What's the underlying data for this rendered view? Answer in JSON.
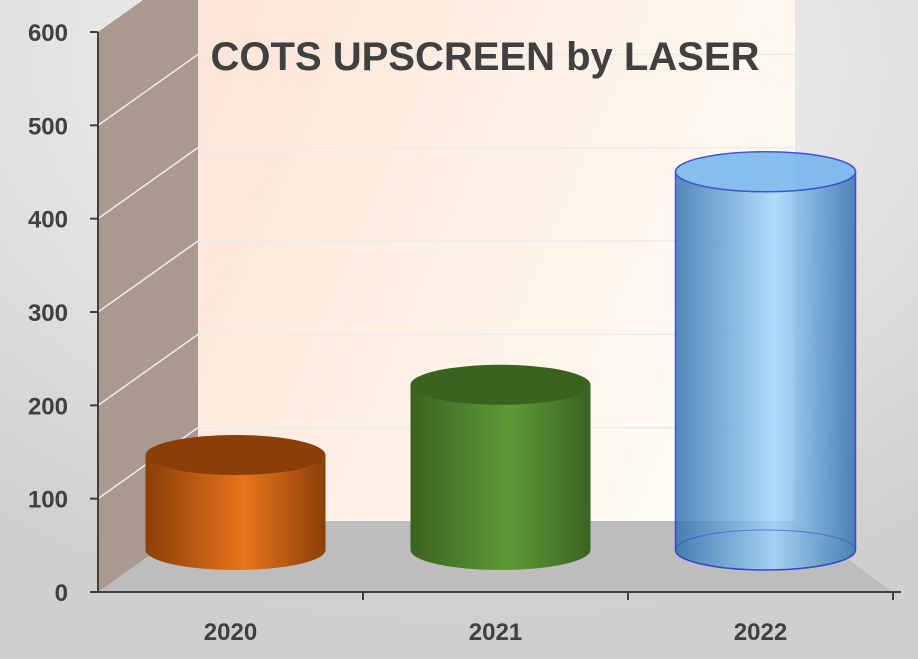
{
  "chart_data": {
    "type": "bar",
    "title": "COTS UPSCREEN by LASER",
    "categories": [
      "2020",
      "2021",
      "2022"
    ],
    "values": [
      115,
      200,
      458
    ],
    "ylim": [
      0,
      600
    ],
    "yticks": [
      0,
      100,
      200,
      300,
      400,
      500,
      600
    ],
    "xlabel": "",
    "ylabel": "",
    "grid": true,
    "legend": "none",
    "colors": {
      "bars": [
        "#E8741C",
        "#5E9A36",
        "#5FA4E6"
      ],
      "bar_dark": [
        "#8A3F08",
        "#3A6320",
        "#2F6FB0"
      ],
      "bar_edge": [
        "#B5560F",
        "#466F2A",
        "#1A2FD0"
      ],
      "side_wall": "#A99990",
      "floor": "#BDBDBD",
      "back_wall_light": "#FFFBF2",
      "back_wall_warm": "#FDE3D6",
      "text": "#404040"
    }
  }
}
